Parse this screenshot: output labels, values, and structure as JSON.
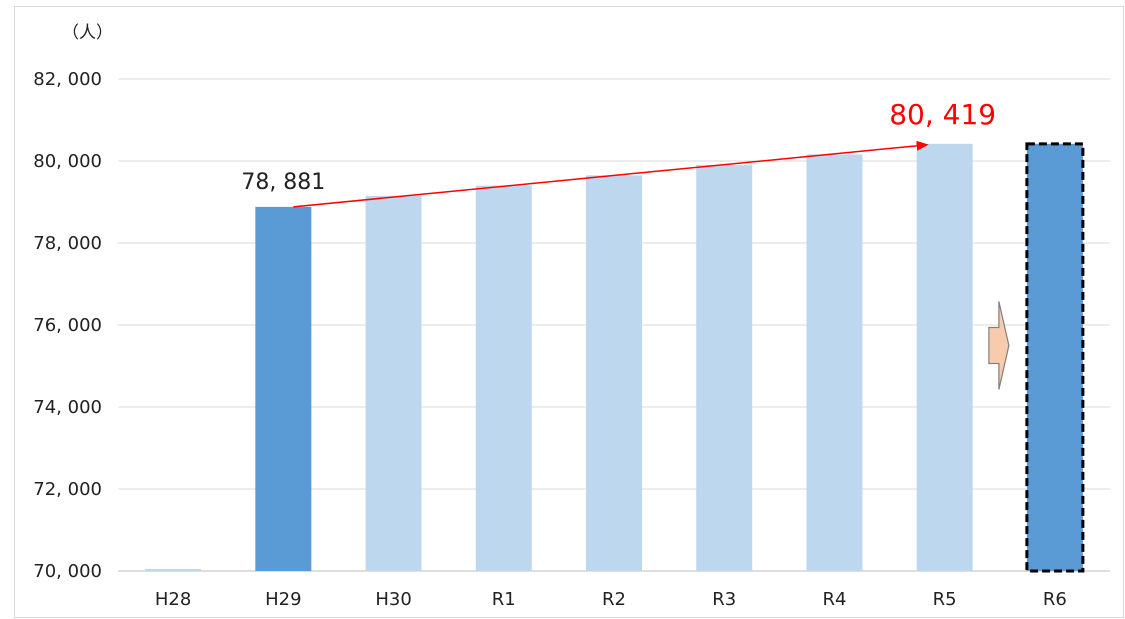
{
  "chart_data": {
    "type": "bar",
    "unit_label": "（人）",
    "categories": [
      "H28",
      "H29",
      "H30",
      "R1",
      "R2",
      "R3",
      "R4",
      "R5",
      "R6"
    ],
    "values": [
      69980,
      78881,
      79150,
      79400,
      79650,
      79900,
      80160,
      80419,
      80419
    ],
    "highlight": [
      false,
      true,
      false,
      false,
      false,
      false,
      false,
      false,
      true
    ],
    "projected_index": 8,
    "ylim": [
      70000,
      82000
    ],
    "yticks": [
      70000,
      72000,
      74000,
      76000,
      78000,
      80000,
      82000
    ],
    "ytick_labels": [
      "70, 000",
      "72, 000",
      "74, 000",
      "76, 000",
      "78, 000",
      "80, 000",
      "82, 000"
    ],
    "grid": true,
    "colors": {
      "highlight": "#5b9bd5",
      "normal": "#bdd7ee",
      "arrow": "#ff0000",
      "block_arrow": "#f8cbad"
    },
    "annotations": {
      "start_label": "78, 881",
      "end_label": "80, 419",
      "trend_from_index": 1,
      "trend_to_index": 7
    }
  }
}
